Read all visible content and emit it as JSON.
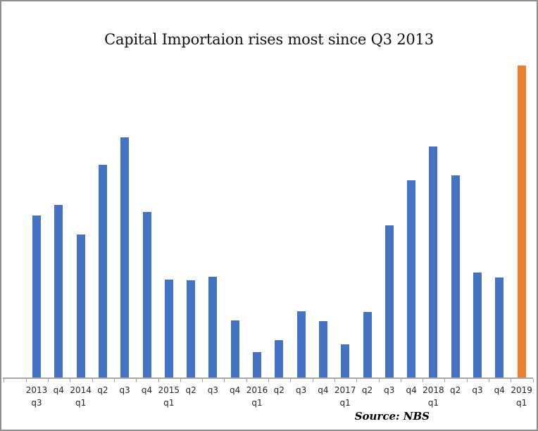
{
  "title": "Capital Importaion rises most since Q3 2013",
  "source_label": "Source: NBS",
  "colors": {
    "bar": "#4472C4",
    "highlight_bar": "#ED7D31",
    "axis": "#A6A6A6",
    "chart_border": "#8F8F8F",
    "label_text": "#262626"
  },
  "chart_data": {
    "type": "bar",
    "title": "Capital Importaion rises most since Q3 2013",
    "source": "Source: NBS",
    "categories": [
      "2013 q3",
      "q4",
      "2014 q1",
      "q2",
      "q3",
      "q4",
      "2015 q1",
      "q2",
      "q3",
      "q4",
      "2016 q1",
      "q2",
      "q3",
      "q4",
      "2017 q1",
      "q2",
      "q3",
      "q4",
      "2018 q1",
      "q2",
      "q3",
      "q4",
      "2019 q1"
    ],
    "tick_label_lines": [
      [
        "2013",
        "q3"
      ],
      [
        "q4"
      ],
      [
        "2014",
        "q1"
      ],
      [
        "q2"
      ],
      [
        "q3"
      ],
      [
        "q4"
      ],
      [
        "2015",
        "q1"
      ],
      [
        "q2"
      ],
      [
        "q3"
      ],
      [
        "q4"
      ],
      [
        "2016",
        "q1"
      ],
      [
        "q2"
      ],
      [
        "q3"
      ],
      [
        "q4"
      ],
      [
        "2017",
        "q1"
      ],
      [
        "q2"
      ],
      [
        "q3"
      ],
      [
        "q4"
      ],
      [
        "2018",
        "q1"
      ],
      [
        "q2"
      ],
      [
        "q3"
      ],
      [
        "q4"
      ],
      [
        "2019",
        "q1"
      ]
    ],
    "values": [
      4.42,
      4.7,
      3.9,
      5.8,
      6.54,
      4.51,
      2.67,
      2.66,
      2.75,
      1.56,
      0.71,
      1.04,
      1.82,
      1.55,
      0.91,
      1.79,
      4.15,
      5.38,
      6.3,
      5.51,
      2.86,
      2.73,
      8.49
    ],
    "highlight_index": 22,
    "ylim": [
      0,
      8.6
    ],
    "xlabel": "",
    "ylabel": "",
    "y_axis_shown": false,
    "gridlines": false,
    "legend": false
  }
}
